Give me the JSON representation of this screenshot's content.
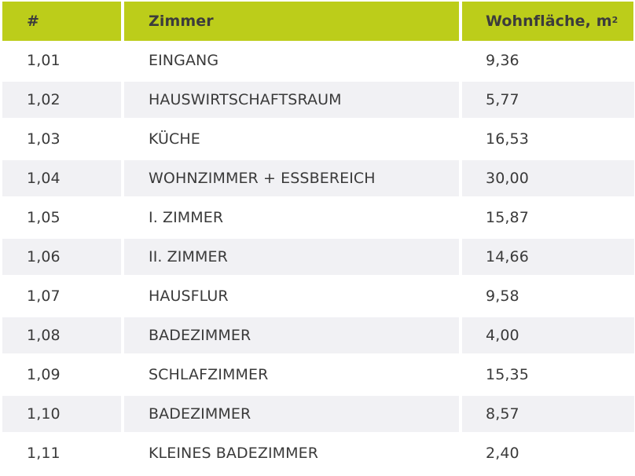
{
  "table": {
    "columns": [
      "#",
      "Zimmer",
      "Wohnfläche, m"
    ],
    "unit_superscript": "2",
    "rows": [
      {
        "num": "1,01",
        "room": "EINGANG",
        "area": "9,36"
      },
      {
        "num": "1,02",
        "room": "HAUSWIRTSCHAFTSRAUM",
        "area": "5,77"
      },
      {
        "num": "1,03",
        "room": "KÜCHE",
        "area": "16,53"
      },
      {
        "num": "1,04",
        "room": "WOHNZIMMER + ESSBEREICH",
        "area": "30,00"
      },
      {
        "num": "1,05",
        "room": "I. ZIMMER",
        "area": "15,87"
      },
      {
        "num": "1,06",
        "room": "II. ZIMMER",
        "area": "14,66"
      },
      {
        "num": "1,07",
        "room": "HAUSFLUR",
        "area": "9,58"
      },
      {
        "num": "1,08",
        "room": "BADEZIMMER",
        "area": "4,00"
      },
      {
        "num": "1,09",
        "room": "SCHLAFZIMMER",
        "area": "15,35"
      },
      {
        "num": "1,10",
        "room": "BADEZIMMER",
        "area": "8,57"
      },
      {
        "num": "1,11",
        "room": "KLEINES BADEZIMMER",
        "area": "2,40"
      }
    ]
  },
  "colors": {
    "header_bg": "#bccd1a",
    "alt_row_bg": "#f1f1f4",
    "text": "#3a3a3a"
  }
}
